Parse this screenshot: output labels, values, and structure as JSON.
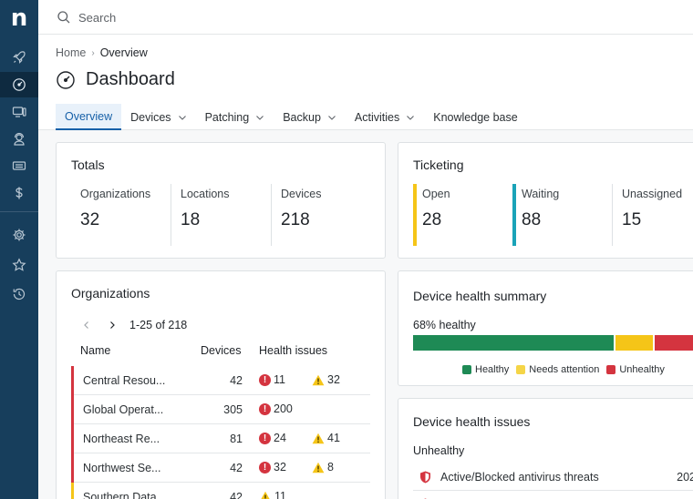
{
  "sidebar": {
    "logo": "n",
    "items": [
      {
        "icon": "rocket-icon"
      },
      {
        "icon": "dashboard-icon",
        "active": true
      },
      {
        "icon": "devices-icon"
      },
      {
        "icon": "user-support-icon"
      },
      {
        "icon": "ticket-icon"
      },
      {
        "icon": "dollar-icon"
      },
      {
        "icon": "gear-icon"
      },
      {
        "icon": "star-icon"
      },
      {
        "icon": "history-icon"
      }
    ]
  },
  "search": {
    "placeholder": "Search",
    "value": ""
  },
  "breadcrumb": {
    "home": "Home",
    "current": "Overview"
  },
  "page": {
    "title": "Dashboard",
    "icon": "dashboard-icon"
  },
  "tabs": [
    {
      "label": "Overview",
      "active": true,
      "dropdown": false
    },
    {
      "label": "Devices",
      "dropdown": true
    },
    {
      "label": "Patching",
      "dropdown": true
    },
    {
      "label": "Backup",
      "dropdown": true
    },
    {
      "label": "Activities",
      "dropdown": true
    },
    {
      "label": "Knowledge base",
      "dropdown": false
    }
  ],
  "totals": {
    "title": "Totals",
    "stats": [
      {
        "label": "Organizations",
        "value": "32"
      },
      {
        "label": "Locations",
        "value": "18"
      },
      {
        "label": "Devices",
        "value": "218"
      }
    ]
  },
  "ticketing": {
    "title": "Ticketing",
    "stats": [
      {
        "label": "Open",
        "value": "28",
        "color": "#f5c518"
      },
      {
        "label": "Waiting",
        "value": "88",
        "color": "#1aa3b8"
      },
      {
        "label": "Unassigned",
        "value": "15"
      }
    ]
  },
  "organizations": {
    "title": "Organizations",
    "pager": "1-25 of 218",
    "columns": {
      "name": "Name",
      "devices": "Devices",
      "health": "Health issues"
    },
    "rows": [
      {
        "name": "Central Resou...",
        "devices": "42",
        "critical": "11",
        "warning": "32",
        "flag": "#d4343f"
      },
      {
        "name": "Global Operat...",
        "devices": "305",
        "critical": "200",
        "warning": "",
        "flag": "#d4343f"
      },
      {
        "name": "Northeast Re...",
        "devices": "81",
        "critical": "24",
        "warning": "41",
        "flag": "#d4343f"
      },
      {
        "name": "Northwest Se...",
        "devices": "42",
        "critical": "32",
        "warning": "8",
        "flag": "#d4343f"
      },
      {
        "name": "Southern Data",
        "devices": "42",
        "critical": "",
        "warning": "11",
        "flag": "#f5c518"
      }
    ]
  },
  "health_summary": {
    "title": "Device health summary",
    "healthy_label": "68% healthy",
    "segments": [
      {
        "name": "Healthy",
        "fraction": 0.68,
        "color": "#1e8a55"
      },
      {
        "name": "Needs attention",
        "fraction": 0.125,
        "color": "#f5c518"
      },
      {
        "name": "Unhealthy",
        "fraction": 0.195,
        "color": "#d4343f"
      }
    ],
    "legend": [
      "Healthy",
      "Needs attention",
      "Unhealthy"
    ]
  },
  "health_issues": {
    "title": "Device health issues",
    "subheading": "Unhealthy",
    "rows": [
      {
        "name": "Active/Blocked antivirus threats",
        "count": "202",
        "icon": "shield-alert-icon"
      },
      {
        "name": "",
        "count": "",
        "icon": "shield-alert-icon"
      }
    ]
  }
}
